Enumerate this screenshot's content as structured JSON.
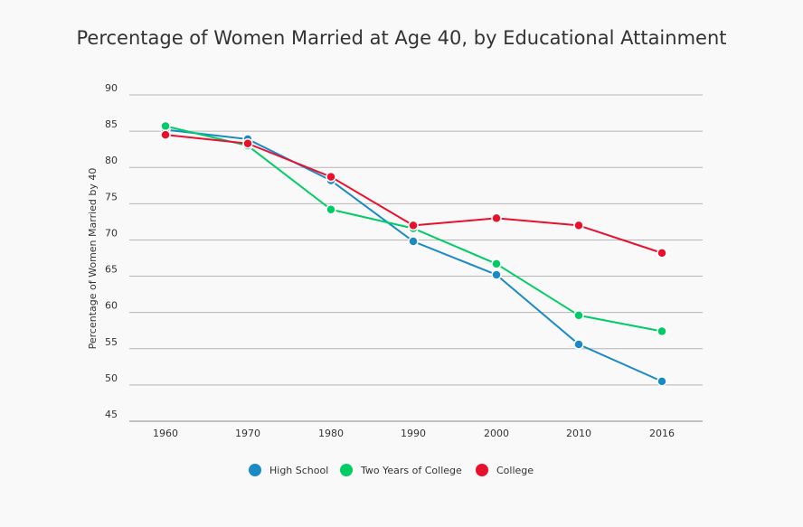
{
  "chart_data": {
    "type": "line",
    "title": "Percentage of Women Married at Age 40, by Educational Attainment",
    "xlabel": "",
    "ylabel": "Percentage of Women Married by 40",
    "categories": [
      "1960",
      "1970",
      "1980",
      "1990",
      "2000",
      "2010",
      "2016"
    ],
    "y_ticks": [
      90,
      85,
      80,
      75,
      70,
      65,
      60,
      55,
      50,
      45
    ],
    "ylim": [
      45,
      90
    ],
    "grid": true,
    "legend_position": "bottom",
    "series": [
      {
        "name": "High School",
        "color": "#1a8ac6",
        "values": [
          85.2,
          83.9,
          78.2,
          69.8,
          65.2,
          55.6,
          50.5
        ]
      },
      {
        "name": "Two Years of College",
        "color": "#00cc66",
        "values": [
          85.7,
          83.0,
          74.2,
          71.6,
          66.7,
          59.6,
          57.4
        ]
      },
      {
        "name": "College",
        "color": "#e8112d",
        "values": [
          84.5,
          83.3,
          78.7,
          72.0,
          73.0,
          72.0,
          68.2
        ]
      }
    ]
  }
}
